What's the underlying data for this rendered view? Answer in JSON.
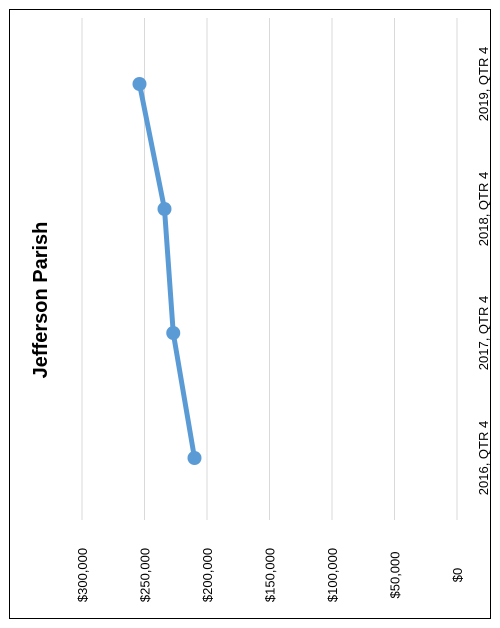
{
  "chart_data": {
    "type": "line",
    "title": "Jefferson Parish",
    "orientation": "rotated 90 degrees",
    "categories": [
      "2016, QTR 4",
      "2017, QTR 4",
      "2018, QTR 4",
      "2019, QTR 4"
    ],
    "series": [
      {
        "values": [
          210000,
          227000,
          234000,
          254000
        ]
      }
    ],
    "value_ticks": [
      "$0",
      "$50,000",
      "$100,000",
      "$150,000",
      "$200,000",
      "$250,000",
      "$300,000"
    ],
    "ylim": [
      0,
      300000
    ],
    "grid": true,
    "legend": "none",
    "colors": {
      "line": "#5B9BD5",
      "grid": "#D9D9D9",
      "border": "#000000"
    }
  }
}
